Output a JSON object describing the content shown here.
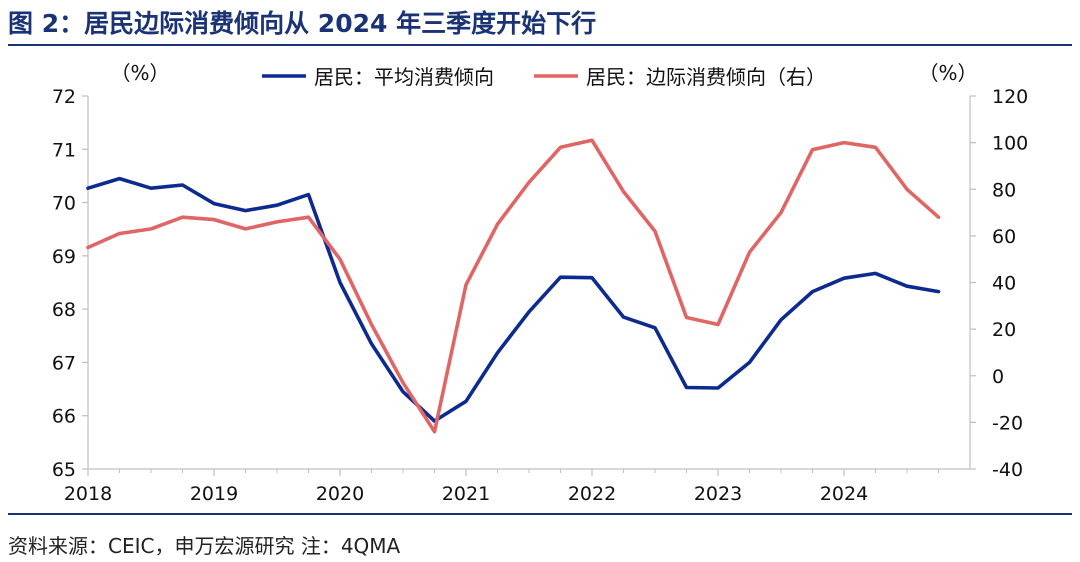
{
  "figure": {
    "title": "图 2：居民边际消费倾向从 2024 年三季度开始下行",
    "source": "资料来源：CEIC，申万宏源研究  注：4QMA"
  },
  "colors": {
    "title": "#1a3276",
    "series_left": "#0d2a8f",
    "series_right": "#e06666",
    "axis": "#bfbfbf"
  },
  "chart_data": {
    "type": "line",
    "title": "",
    "left_axis": {
      "unit_label": "（%）",
      "min": 65,
      "max": 72,
      "ticks": [
        65,
        66,
        67,
        68,
        69,
        70,
        71,
        72
      ]
    },
    "right_axis": {
      "unit_label": "（%）",
      "min": -40,
      "max": 120,
      "ticks": [
        -40,
        -20,
        0,
        20,
        40,
        60,
        80,
        100,
        120
      ]
    },
    "x_axis": {
      "min": 2018.0,
      "max": 2025.0,
      "tick_labels": [
        "2018",
        "2019",
        "2020",
        "2021",
        "2022",
        "2023",
        "2024"
      ],
      "tick_values": [
        2018,
        2019,
        2020,
        2021,
        2022,
        2023,
        2024
      ]
    },
    "legend_position": "top-center",
    "grid": false,
    "series": [
      {
        "name": "居民：平均消费倾向",
        "axis": "left",
        "color": "#0d2a8f",
        "points": [
          [
            2018.0,
            70.27
          ],
          [
            2018.25,
            70.45
          ],
          [
            2018.5,
            70.27
          ],
          [
            2018.75,
            70.33
          ],
          [
            2019.0,
            69.98
          ],
          [
            2019.25,
            69.85
          ],
          [
            2019.5,
            69.95
          ],
          [
            2019.75,
            70.15
          ],
          [
            2020.0,
            68.5
          ],
          [
            2020.25,
            67.35
          ],
          [
            2020.5,
            66.45
          ],
          [
            2020.75,
            65.9
          ],
          [
            2021.0,
            66.27
          ],
          [
            2021.25,
            67.18
          ],
          [
            2021.5,
            67.95
          ],
          [
            2021.75,
            68.6
          ],
          [
            2022.0,
            68.59
          ],
          [
            2022.25,
            67.85
          ],
          [
            2022.5,
            67.65
          ],
          [
            2022.75,
            66.53
          ],
          [
            2023.0,
            66.52
          ],
          [
            2023.25,
            67.0
          ],
          [
            2023.5,
            67.8
          ],
          [
            2023.75,
            68.33
          ],
          [
            2024.0,
            68.58
          ],
          [
            2024.25,
            68.67
          ],
          [
            2024.5,
            68.43
          ],
          [
            2024.75,
            68.33
          ]
        ]
      },
      {
        "name": "居民：边际消费倾向（右）",
        "axis": "right",
        "color": "#e06666",
        "points": [
          [
            2018.0,
            55
          ],
          [
            2018.25,
            61
          ],
          [
            2018.5,
            63
          ],
          [
            2018.75,
            68
          ],
          [
            2019.0,
            67
          ],
          [
            2019.25,
            63
          ],
          [
            2019.5,
            66
          ],
          [
            2019.75,
            68
          ],
          [
            2020.0,
            50
          ],
          [
            2020.25,
            22
          ],
          [
            2020.5,
            -3
          ],
          [
            2020.75,
            -24
          ],
          [
            2021.0,
            39
          ],
          [
            2021.25,
            65
          ],
          [
            2021.5,
            83
          ],
          [
            2021.75,
            98
          ],
          [
            2022.0,
            101
          ],
          [
            2022.25,
            79
          ],
          [
            2022.5,
            62
          ],
          [
            2022.75,
            25
          ],
          [
            2023.0,
            22
          ],
          [
            2023.25,
            53
          ],
          [
            2023.5,
            70
          ],
          [
            2023.75,
            97
          ],
          [
            2024.0,
            100
          ],
          [
            2024.25,
            98
          ],
          [
            2024.5,
            80
          ],
          [
            2024.75,
            68
          ]
        ]
      }
    ]
  }
}
